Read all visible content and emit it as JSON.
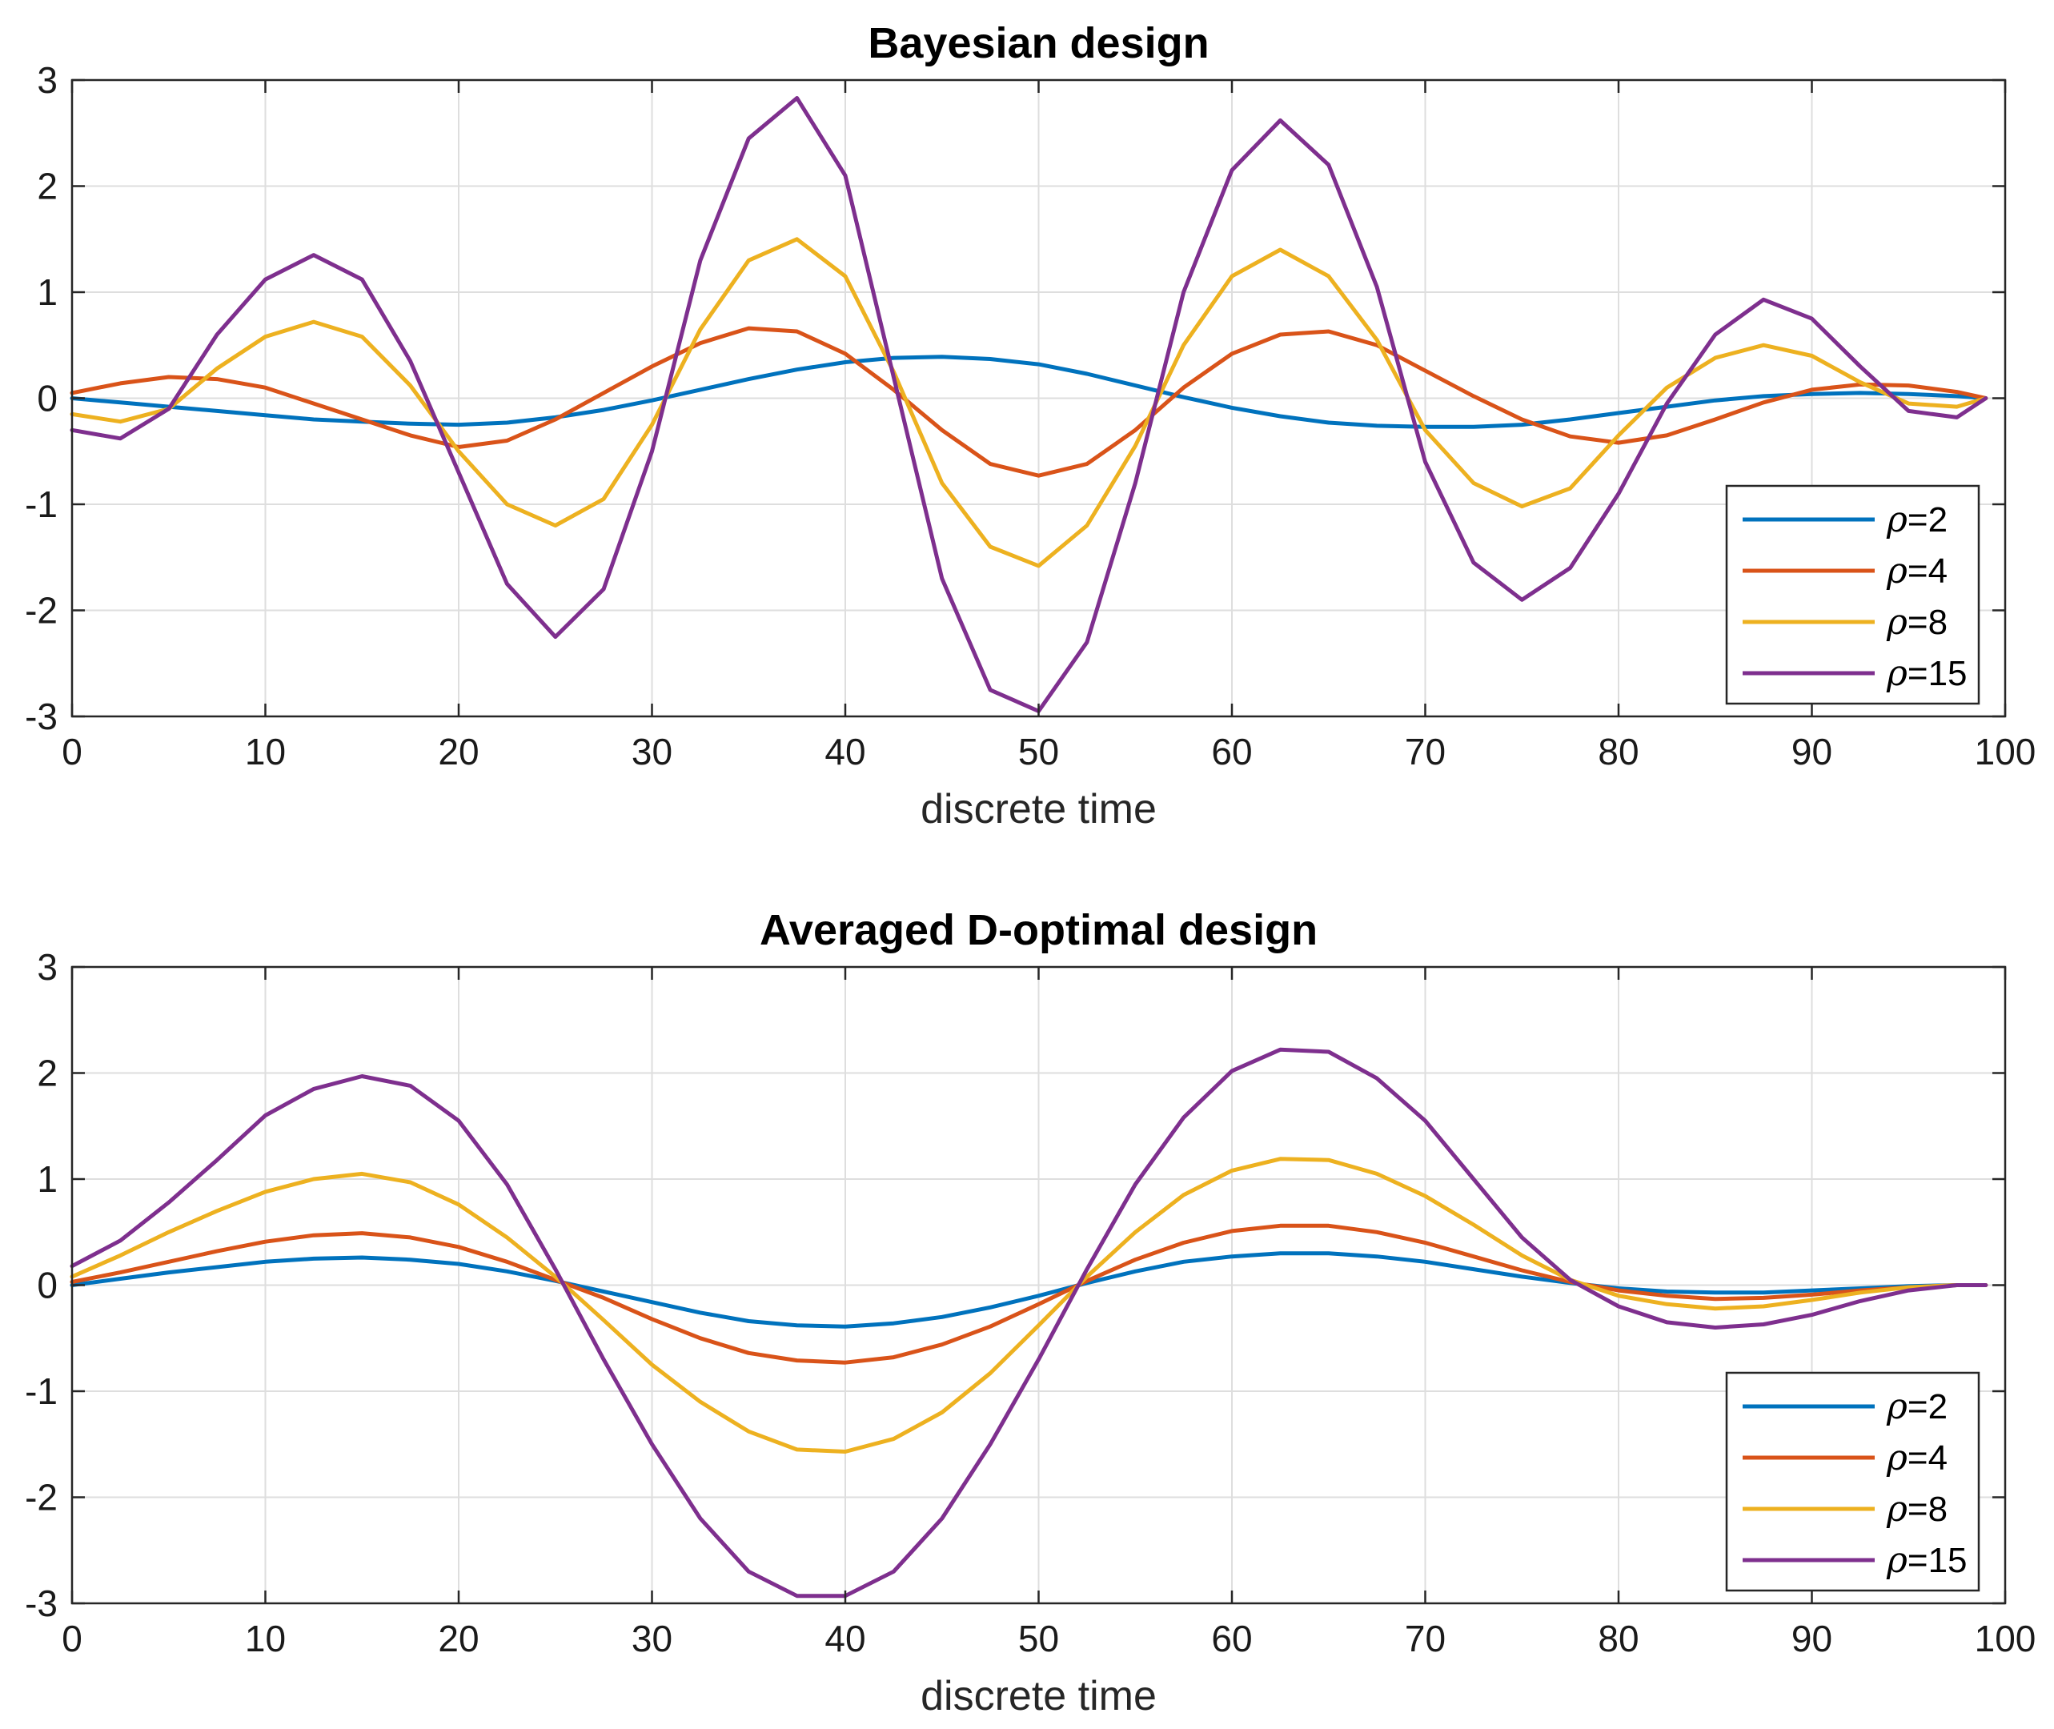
{
  "chart_data": [
    {
      "type": "line",
      "title": "Bayesian design",
      "xlabel": "discrete time",
      "ylabel": "",
      "xlim": [
        0,
        100
      ],
      "ylim": [
        -3,
        3
      ],
      "xticks": [
        "0",
        "10",
        "20",
        "30",
        "40",
        "50",
        "60",
        "70",
        "80",
        "90",
        "100"
      ],
      "yticks": [
        "3",
        "2",
        "1",
        "0",
        "-1",
        "-2",
        "-3"
      ],
      "grid": true,
      "legend_position": "bottom-right",
      "x": [
        0,
        2.5,
        5,
        7.5,
        10,
        12.5,
        15,
        17.5,
        20,
        22.5,
        25,
        27.5,
        30,
        32.5,
        35,
        37.5,
        40,
        42.5,
        45,
        47.5,
        50,
        52.5,
        55,
        57.5,
        60,
        62.5,
        65,
        67.5,
        70,
        72.5,
        75,
        77.5,
        80,
        82.5,
        85,
        87.5,
        90,
        92.5,
        95,
        97.5,
        99
      ],
      "series": [
        {
          "name": "ρ=2",
          "symbol": "ρ",
          "suffix": "=2",
          "color": "#0072BD",
          "values": [
            0,
            -0.04,
            -0.08,
            -0.12,
            -0.16,
            -0.2,
            -0.22,
            -0.24,
            -0.25,
            -0.23,
            -0.18,
            -0.11,
            -0.02,
            0.08,
            0.18,
            0.27,
            0.34,
            0.38,
            0.39,
            0.37,
            0.32,
            0.23,
            0.12,
            0.01,
            -0.09,
            -0.17,
            -0.23,
            -0.26,
            -0.27,
            -0.27,
            -0.25,
            -0.2,
            -0.14,
            -0.08,
            -0.02,
            0.02,
            0.04,
            0.05,
            0.04,
            0.02,
            0
          ]
        },
        {
          "name": "ρ=4",
          "symbol": "ρ",
          "suffix": "=4",
          "color": "#D95319",
          "values": [
            0.05,
            0.14,
            0.2,
            0.18,
            0.1,
            -0.05,
            -0.2,
            -0.35,
            -0.46,
            -0.4,
            -0.2,
            0.05,
            0.3,
            0.52,
            0.66,
            0.63,
            0.42,
            0.08,
            -0.3,
            -0.62,
            -0.73,
            -0.62,
            -0.3,
            0.1,
            0.42,
            0.6,
            0.63,
            0.5,
            0.26,
            0.02,
            -0.2,
            -0.36,
            -0.42,
            -0.35,
            -0.2,
            -0.04,
            0.08,
            0.13,
            0.12,
            0.06,
            0
          ]
        },
        {
          "name": "ρ=8",
          "symbol": "ρ",
          "suffix": "=8",
          "color": "#EDB120",
          "values": [
            -0.15,
            -0.22,
            -0.1,
            0.28,
            0.58,
            0.72,
            0.58,
            0.12,
            -0.5,
            -1.0,
            -1.2,
            -0.95,
            -0.25,
            0.65,
            1.3,
            1.5,
            1.15,
            0.25,
            -0.8,
            -1.4,
            -1.58,
            -1.2,
            -0.45,
            0.5,
            1.15,
            1.4,
            1.15,
            0.55,
            -0.3,
            -0.8,
            -1.02,
            -0.85,
            -0.35,
            0.1,
            0.38,
            0.5,
            0.4,
            0.15,
            -0.05,
            -0.08,
            0
          ]
        },
        {
          "name": "ρ=15",
          "symbol": "ρ",
          "suffix": "=15",
          "color": "#7E2F8E",
          "values": [
            -0.3,
            -0.38,
            -0.1,
            0.6,
            1.12,
            1.35,
            1.12,
            0.35,
            -0.7,
            -1.75,
            -2.25,
            -1.8,
            -0.5,
            1.3,
            2.45,
            2.83,
            2.1,
            0.2,
            -1.7,
            -2.75,
            -2.95,
            -2.3,
            -0.8,
            1.0,
            2.15,
            2.62,
            2.2,
            1.05,
            -0.6,
            -1.55,
            -1.9,
            -1.6,
            -0.9,
            -0.05,
            0.6,
            0.93,
            0.75,
            0.3,
            -0.12,
            -0.18,
            0
          ]
        }
      ]
    },
    {
      "type": "line",
      "title": "Averaged D-optimal design",
      "xlabel": "discrete time",
      "ylabel": "",
      "xlim": [
        0,
        100
      ],
      "ylim": [
        -3,
        3
      ],
      "xticks": [
        "0",
        "10",
        "20",
        "30",
        "40",
        "50",
        "60",
        "70",
        "80",
        "90",
        "100"
      ],
      "yticks": [
        "3",
        "2",
        "1",
        "0",
        "-1",
        "-2",
        "-3"
      ],
      "grid": true,
      "legend_position": "bottom-right",
      "x": [
        0,
        2.5,
        5,
        7.5,
        10,
        12.5,
        15,
        17.5,
        20,
        22.5,
        25,
        27.5,
        30,
        32.5,
        35,
        37.5,
        40,
        42.5,
        45,
        47.5,
        50,
        52.5,
        55,
        57.5,
        60,
        62.5,
        65,
        67.5,
        70,
        72.5,
        75,
        77.5,
        80,
        82.5,
        85,
        87.5,
        90,
        92.5,
        95,
        97.5,
        99
      ],
      "series": [
        {
          "name": "ρ=2",
          "symbol": "ρ",
          "suffix": "=2",
          "color": "#0072BD",
          "values": [
            0,
            0.06,
            0.12,
            0.17,
            0.22,
            0.25,
            0.26,
            0.24,
            0.2,
            0.13,
            0.04,
            -0.06,
            -0.16,
            -0.26,
            -0.34,
            -0.38,
            -0.39,
            -0.36,
            -0.3,
            -0.21,
            -0.1,
            0.02,
            0.13,
            0.22,
            0.27,
            0.3,
            0.3,
            0.27,
            0.22,
            0.15,
            0.08,
            0.02,
            -0.03,
            -0.06,
            -0.07,
            -0.07,
            -0.05,
            -0.03,
            -0.01,
            0,
            0
          ]
        },
        {
          "name": "ρ=4",
          "symbol": "ρ",
          "suffix": "=4",
          "color": "#D95319",
          "values": [
            0.03,
            0.12,
            0.22,
            0.32,
            0.41,
            0.47,
            0.49,
            0.45,
            0.36,
            0.22,
            0.05,
            -0.12,
            -0.32,
            -0.5,
            -0.64,
            -0.71,
            -0.73,
            -0.68,
            -0.56,
            -0.39,
            -0.18,
            0.04,
            0.24,
            0.4,
            0.51,
            0.56,
            0.56,
            0.5,
            0.4,
            0.27,
            0.14,
            0.03,
            -0.05,
            -0.1,
            -0.13,
            -0.12,
            -0.09,
            -0.05,
            -0.02,
            0,
            0
          ]
        },
        {
          "name": "ρ=8",
          "symbol": "ρ",
          "suffix": "=8",
          "color": "#EDB120",
          "values": [
            0.08,
            0.28,
            0.5,
            0.7,
            0.88,
            1.0,
            1.05,
            0.97,
            0.76,
            0.45,
            0.08,
            -0.33,
            -0.75,
            -1.1,
            -1.38,
            -1.55,
            -1.57,
            -1.45,
            -1.2,
            -0.83,
            -0.38,
            0.08,
            0.5,
            0.85,
            1.08,
            1.19,
            1.18,
            1.05,
            0.84,
            0.57,
            0.28,
            0.05,
            -0.1,
            -0.18,
            -0.22,
            -0.2,
            -0.14,
            -0.07,
            -0.02,
            0,
            0
          ]
        },
        {
          "name": "ρ=15",
          "symbol": "ρ",
          "suffix": "=15",
          "color": "#7E2F8E",
          "values": [
            0.18,
            0.42,
            0.78,
            1.18,
            1.6,
            1.85,
            1.97,
            1.88,
            1.55,
            0.95,
            0.15,
            -0.7,
            -1.5,
            -2.2,
            -2.7,
            -2.93,
            -2.93,
            -2.7,
            -2.2,
            -1.5,
            -0.7,
            0.15,
            0.95,
            1.58,
            2.02,
            2.22,
            2.2,
            1.95,
            1.55,
            1.0,
            0.45,
            0.05,
            -0.2,
            -0.35,
            -0.4,
            -0.37,
            -0.28,
            -0.15,
            -0.05,
            0,
            0
          ]
        }
      ]
    }
  ]
}
